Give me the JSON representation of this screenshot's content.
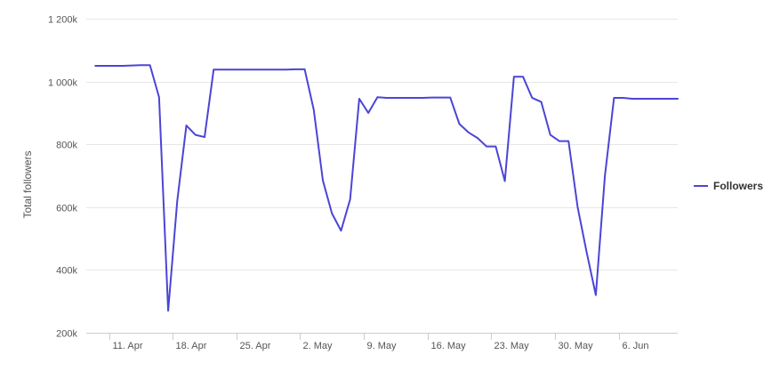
{
  "chart_data": {
    "type": "line",
    "xlabel": "",
    "ylabel": "Total followers",
    "ylim": [
      200000,
      1200000
    ],
    "y_ticks": [
      200000,
      400000,
      600000,
      800000,
      1000000,
      1200000
    ],
    "y_tick_labels": [
      "200k",
      "400k",
      "600k",
      "800k",
      "1 000k",
      "1 200k"
    ],
    "x_tick_labels": [
      "11. Apr",
      "18. Apr",
      "25. Apr",
      "2. May",
      "9. May",
      "16. May",
      "23. May",
      "30. May",
      "6. Jun"
    ],
    "x_tick_dates": [
      "2021-04-11",
      "2021-04-18",
      "2021-04-25",
      "2021-05-02",
      "2021-05-09",
      "2021-05-16",
      "2021-05-23",
      "2021-05-30",
      "2021-06-06"
    ],
    "grid": true,
    "legend_position": "right",
    "colors": {
      "series": "#4b45d6",
      "grid": "#e6e6e6",
      "axis": "#cccccc"
    },
    "series": [
      {
        "name": "Followers",
        "points": [
          [
            "2021-04-09",
            1050000
          ],
          [
            "2021-04-10",
            1050000
          ],
          [
            "2021-04-11",
            1050000
          ],
          [
            "2021-04-12",
            1050000
          ],
          [
            "2021-04-13",
            1051000
          ],
          [
            "2021-04-14",
            1052000
          ],
          [
            "2021-04-15",
            1052000
          ],
          [
            "2021-04-16",
            950000
          ],
          [
            "2021-04-17",
            270000
          ],
          [
            "2021-04-18",
            620000
          ],
          [
            "2021-04-19",
            860000
          ],
          [
            "2021-04-20",
            830000
          ],
          [
            "2021-04-21",
            823000
          ],
          [
            "2021-04-22",
            1038000
          ],
          [
            "2021-04-23",
            1038000
          ],
          [
            "2021-04-24",
            1038000
          ],
          [
            "2021-04-25",
            1038000
          ],
          [
            "2021-04-26",
            1038000
          ],
          [
            "2021-04-27",
            1038000
          ],
          [
            "2021-04-28",
            1038000
          ],
          [
            "2021-04-29",
            1038000
          ],
          [
            "2021-04-30",
            1038000
          ],
          [
            "2021-05-01",
            1039000
          ],
          [
            "2021-05-02",
            1039000
          ],
          [
            "2021-05-03",
            910000
          ],
          [
            "2021-05-04",
            685000
          ],
          [
            "2021-05-05",
            580000
          ],
          [
            "2021-05-06",
            525000
          ],
          [
            "2021-05-07",
            625000
          ],
          [
            "2021-05-08",
            945000
          ],
          [
            "2021-05-09",
            900000
          ],
          [
            "2021-05-10",
            950000
          ],
          [
            "2021-05-11",
            948000
          ],
          [
            "2021-05-12",
            948000
          ],
          [
            "2021-05-13",
            948000
          ],
          [
            "2021-05-14",
            948000
          ],
          [
            "2021-05-15",
            948000
          ],
          [
            "2021-05-16",
            949000
          ],
          [
            "2021-05-17",
            949000
          ],
          [
            "2021-05-18",
            949000
          ],
          [
            "2021-05-19",
            865000
          ],
          [
            "2021-05-20",
            838000
          ],
          [
            "2021-05-21",
            820000
          ],
          [
            "2021-05-22",
            793000
          ],
          [
            "2021-05-23",
            793000
          ],
          [
            "2021-05-24",
            683000
          ],
          [
            "2021-05-25",
            1015000
          ],
          [
            "2021-05-26",
            1015000
          ],
          [
            "2021-05-27",
            948000
          ],
          [
            "2021-05-28",
            935000
          ],
          [
            "2021-05-29",
            830000
          ],
          [
            "2021-05-30",
            810000
          ],
          [
            "2021-05-31",
            810000
          ],
          [
            "2021-06-01",
            600000
          ],
          [
            "2021-06-02",
            455000
          ],
          [
            "2021-06-03",
            320000
          ],
          [
            "2021-06-04",
            700000
          ],
          [
            "2021-06-05",
            948000
          ],
          [
            "2021-06-06",
            948000
          ],
          [
            "2021-06-07",
            945000
          ],
          [
            "2021-06-08",
            945000
          ],
          [
            "2021-06-09",
            945000
          ],
          [
            "2021-06-10",
            945000
          ],
          [
            "2021-06-11",
            945000
          ],
          [
            "2021-06-12",
            945000
          ]
        ]
      }
    ]
  }
}
